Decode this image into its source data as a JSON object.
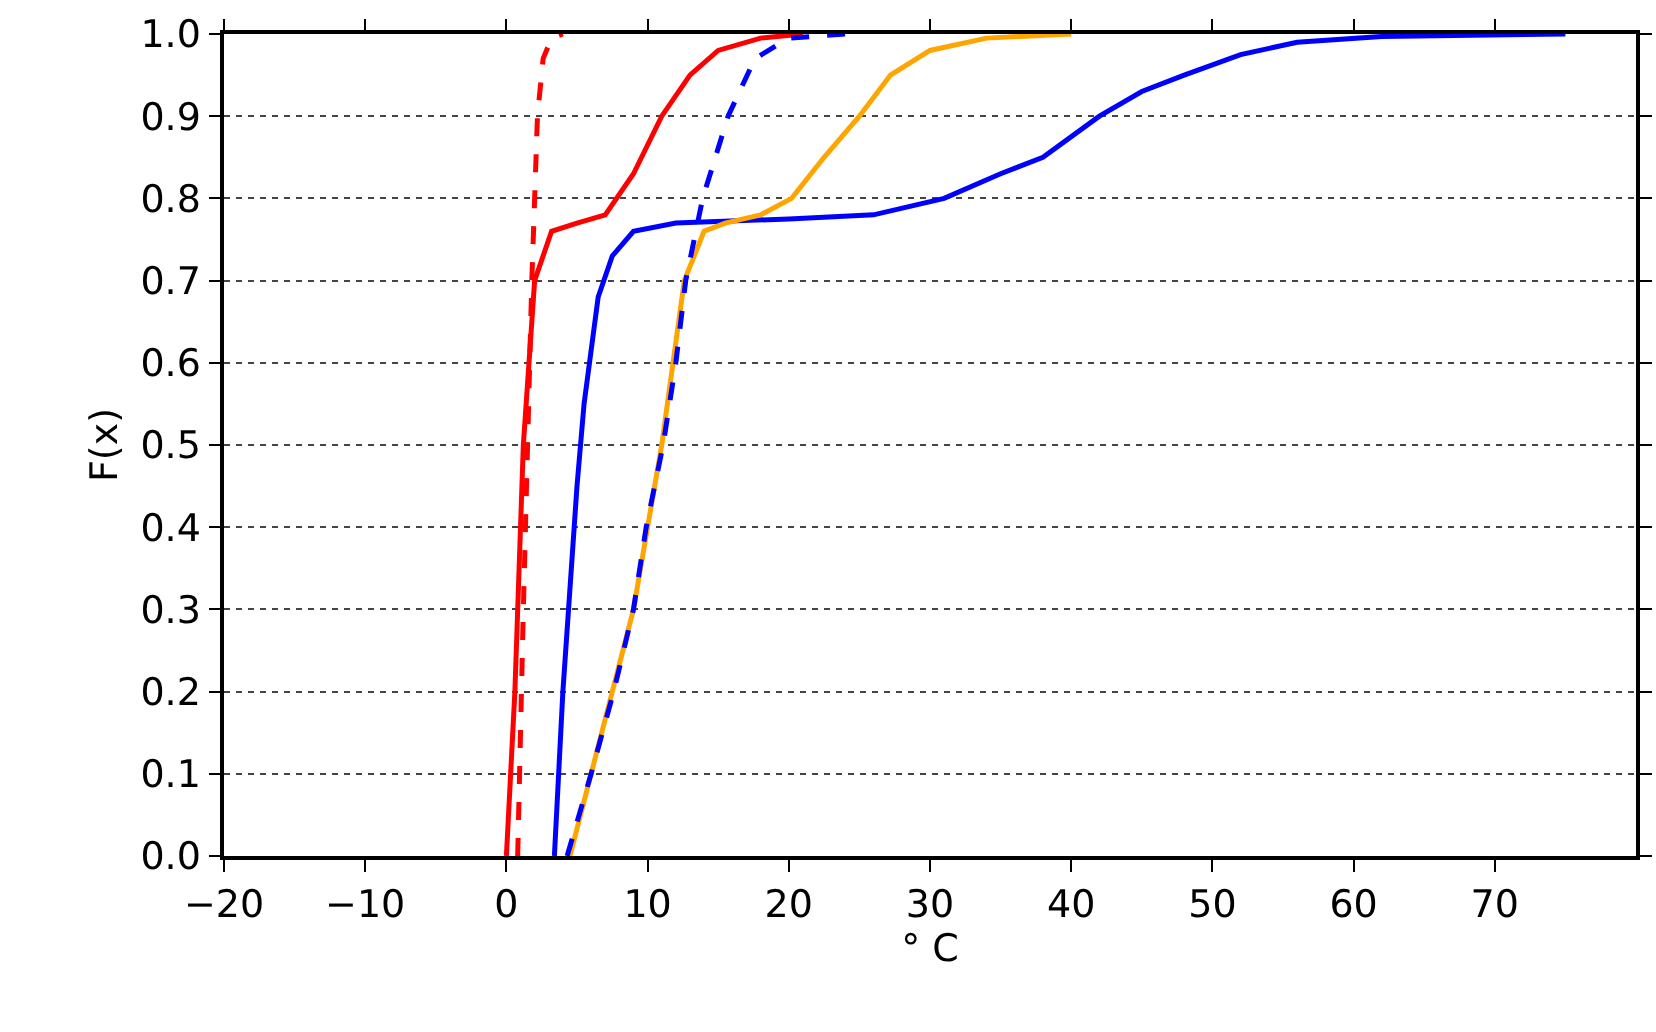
{
  "chart_data": {
    "type": "line",
    "xlabel": "° C",
    "ylabel": "F(x)",
    "xlim": [
      -20,
      80
    ],
    "ylim": [
      0,
      1.0
    ],
    "xticks": [
      {
        "value": -20,
        "label": "−20"
      },
      {
        "value": -10,
        "label": "−10"
      },
      0,
      10,
      20,
      30,
      40,
      50,
      60,
      70
    ],
    "yticks": [
      {
        "value": 0,
        "label": "0.0"
      },
      0.1,
      0.2,
      0.3,
      0.4,
      0.5,
      0.6,
      0.7,
      0.8,
      0.9,
      {
        "value": 1,
        "label": "1.0"
      }
    ],
    "grid": "y",
    "marker": "none",
    "series": [
      {
        "color": "#ff0000",
        "line_style": "solid",
        "x": [
          0,
          0.6,
          1.2,
          2,
          3.2,
          5,
          7,
          9,
          11,
          13,
          15,
          18,
          21
        ],
        "values": [
          0,
          0.2,
          0.5,
          0.7,
          0.76,
          0.77,
          0.78,
          0.83,
          0.9,
          0.95,
          0.98,
          0.995,
          1.0
        ]
      },
      {
        "color": "#ff0000",
        "line_style": "dashed",
        "x": [
          0.8,
          1.2,
          1.5,
          1.8,
          2.2,
          2.6,
          3.2,
          4
        ],
        "values": [
          0,
          0.3,
          0.5,
          0.7,
          0.9,
          0.97,
          0.995,
          1.0
        ]
      },
      {
        "color": "#0000ff",
        "line_style": "solid",
        "x": [
          3.4,
          4,
          5,
          5.5,
          6.5,
          7.5,
          9,
          12,
          20,
          26,
          31,
          35,
          38,
          42,
          45,
          48,
          52,
          56,
          62,
          75
        ],
        "values": [
          0,
          0.2,
          0.45,
          0.55,
          0.68,
          0.73,
          0.76,
          0.77,
          0.775,
          0.78,
          0.8,
          0.83,
          0.85,
          0.9,
          0.93,
          0.95,
          0.975,
          0.99,
          0.997,
          1.0
        ]
      },
      {
        "color": "#ffa500",
        "line_style": "solid",
        "x": [
          4.5,
          6,
          7.5,
          9,
          10,
          11,
          11.8,
          12.6,
          14,
          15.5,
          18,
          20.2,
          22.5,
          25,
          27.2,
          30,
          34,
          40
        ],
        "values": [
          0,
          0.1,
          0.2,
          0.3,
          0.4,
          0.5,
          0.6,
          0.7,
          0.76,
          0.77,
          0.78,
          0.8,
          0.85,
          0.9,
          0.95,
          0.98,
          0.995,
          1.0
        ]
      },
      {
        "color": "#0000ff",
        "line_style": "dashed",
        "x": [
          4.3,
          6,
          7.6,
          9,
          9.9,
          11.1,
          12,
          12.7,
          13.9,
          15.7,
          17.6,
          20,
          24
        ],
        "values": [
          0,
          0.1,
          0.2,
          0.3,
          0.4,
          0.5,
          0.6,
          0.7,
          0.8,
          0.9,
          0.97,
          0.995,
          1.0
        ]
      }
    ]
  }
}
